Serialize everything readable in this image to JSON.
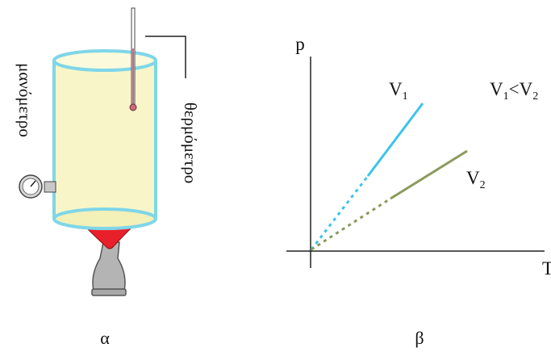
{
  "panel_a": {
    "caption": "α",
    "manometer_label": "μανόμετρο",
    "thermometer_label": "θερμόμετρο"
  },
  "panel_b": {
    "caption": "β",
    "y_axis_label": "p",
    "x_axis_label": "T",
    "line1_label": "V",
    "line1_sub": "1",
    "line2_label": "V",
    "line2_sub": "2",
    "relation_v1": "V",
    "relation_sub1": "1",
    "relation_op": "<V",
    "relation_sub2": "2"
  },
  "colors": {
    "cylinder_fill": "#f8f6c8",
    "cylinder_rim": "#7fd6e8",
    "flame": "#e8202a",
    "burner": "#b4b4b4",
    "thermometer_bulb": "#c76a82",
    "line_v1": "#3cc4ec",
    "line_v2": "#8a9a5c",
    "axes": "#222222"
  }
}
